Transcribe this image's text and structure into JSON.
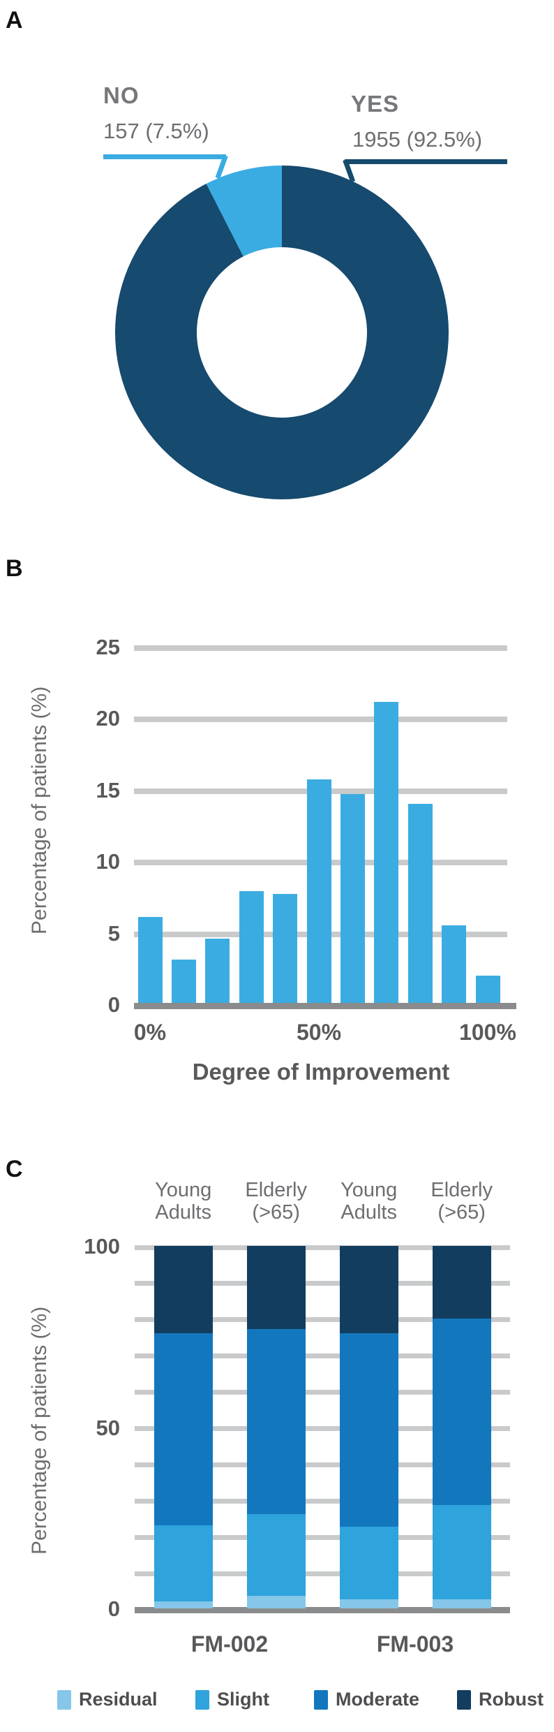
{
  "panels": {
    "a": "A",
    "b": "B",
    "c": "C"
  },
  "chart_data": [
    {
      "type": "pie",
      "panel": "A",
      "donut": true,
      "slices": [
        {
          "label": "YES",
          "value": 1955,
          "percent": 92.5,
          "annotation": "1955 (92.5%)",
          "color": "#164A6E"
        },
        {
          "label": "NO",
          "value": 157,
          "percent": 7.5,
          "annotation": "157 (7.5%)",
          "color": "#3BACE2"
        }
      ]
    },
    {
      "type": "bar",
      "panel": "B",
      "categories": [
        "0%",
        "10%",
        "20%",
        "30%",
        "40%",
        "50%",
        "60%",
        "70%",
        "80%",
        "90%",
        "100%"
      ],
      "values": [
        6,
        3,
        4.5,
        7.8,
        7.6,
        15.6,
        14.6,
        21,
        13.9,
        5.4,
        1.9
      ],
      "bar_color": "#3AACE2",
      "xlabel": "Degree of Improvement",
      "ylabel": "Percentage of patients (%)",
      "ylim": [
        0,
        25
      ],
      "yticks": [
        0,
        5,
        10,
        15,
        20,
        25
      ],
      "xticks_shown": [
        {
          "label": "0%",
          "index": 0
        },
        {
          "label": "50%",
          "index": 5
        },
        {
          "label": "100%",
          "index": 10
        }
      ],
      "grid": true,
      "legend_position": "none"
    },
    {
      "type": "bar",
      "stacked": true,
      "panel": "C",
      "group_labels": [
        "FM-002",
        "FM-003"
      ],
      "bar_labels": [
        [
          "Young",
          "Adults"
        ],
        [
          "Elderly",
          "(>65)"
        ],
        [
          "Young",
          "Adults"
        ],
        [
          "Elderly",
          "(>65)"
        ]
      ],
      "series": [
        {
          "name": "Residual",
          "color": "#85C6E9",
          "values": [
            2,
            3.5,
            2.5,
            2.5
          ]
        },
        {
          "name": "Slight",
          "color": "#2EA3DC",
          "values": [
            21,
            22.5,
            20,
            26
          ]
        },
        {
          "name": "Moderate",
          "color": "#1377BE",
          "values": [
            53,
            51,
            53.5,
            51.5
          ]
        },
        {
          "name": "Robust",
          "color": "#123D5E",
          "values": [
            24,
            23,
            24,
            20
          ]
        }
      ],
      "ylabel": "Percentage of patients (%)",
      "ylim": [
        0,
        100
      ],
      "yticks": [
        0,
        50,
        100
      ],
      "gridline_step": 10,
      "grid": true,
      "legend": [
        "Residual",
        "Slight",
        "Moderate",
        "Robust"
      ],
      "legend_position": "bottom"
    }
  ]
}
